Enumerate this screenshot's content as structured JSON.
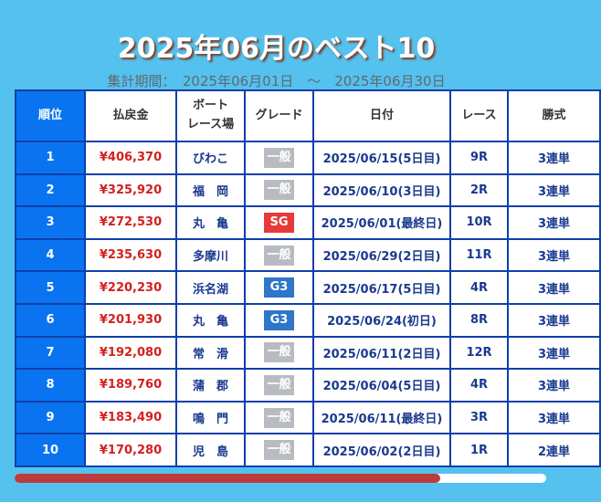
{
  "title": "2025年06月のベスト10",
  "period": "集計期間：　2025年06月01日　～　2025年06月30日",
  "headers": {
    "rank": "順位",
    "payout": "払戻金",
    "venue_1": "ボート",
    "venue_2": "レース場",
    "grade": "グレード",
    "date": "日付",
    "race": "レース",
    "bet": "勝式"
  },
  "colors": {
    "一般": "#b8bcc2",
    "SG": "#e83a3a",
    "G3": "#2f75c8"
  },
  "rows": [
    {
      "rank": "1",
      "payout": "¥406,370",
      "venue": "びわこ",
      "grade": "一般",
      "date": "2025/06/15(5日目)",
      "race": "9R",
      "bet": "3連単"
    },
    {
      "rank": "2",
      "payout": "¥325,920",
      "venue": "福　岡",
      "grade": "一般",
      "date": "2025/06/10(3日目)",
      "race": "2R",
      "bet": "3連単"
    },
    {
      "rank": "3",
      "payout": "¥272,530",
      "venue": "丸　亀",
      "grade": "SG",
      "date": "2025/06/01(最終日)",
      "race": "10R",
      "bet": "3連単"
    },
    {
      "rank": "4",
      "payout": "¥235,630",
      "venue": "多摩川",
      "grade": "一般",
      "date": "2025/06/29(2日目)",
      "race": "11R",
      "bet": "3連単"
    },
    {
      "rank": "5",
      "payout": "¥220,230",
      "venue": "浜名湖",
      "grade": "G3",
      "date": "2025/06/17(5日目)",
      "race": "4R",
      "bet": "3連単"
    },
    {
      "rank": "6",
      "payout": "¥201,930",
      "venue": "丸　亀",
      "grade": "G3",
      "date": "2025/06/24(初日)",
      "race": "8R",
      "bet": "3連単"
    },
    {
      "rank": "7",
      "payout": "¥192,080",
      "venue": "常　滑",
      "grade": "一般",
      "date": "2025/06/11(2日目)",
      "race": "12R",
      "bet": "3連単"
    },
    {
      "rank": "8",
      "payout": "¥189,760",
      "venue": "蒲　郡",
      "grade": "一般",
      "date": "2025/06/04(5日目)",
      "race": "4R",
      "bet": "3連単"
    },
    {
      "rank": "9",
      "payout": "¥183,490",
      "venue": "鳴　門",
      "grade": "一般",
      "date": "2025/06/11(最終日)",
      "race": "3R",
      "bet": "3連単"
    },
    {
      "rank": "10",
      "payout": "¥170,280",
      "venue": "児　島",
      "grade": "一般",
      "date": "2025/06/02(2日目)",
      "race": "1R",
      "bet": "2連単"
    }
  ],
  "scroll_position": 0.8
}
